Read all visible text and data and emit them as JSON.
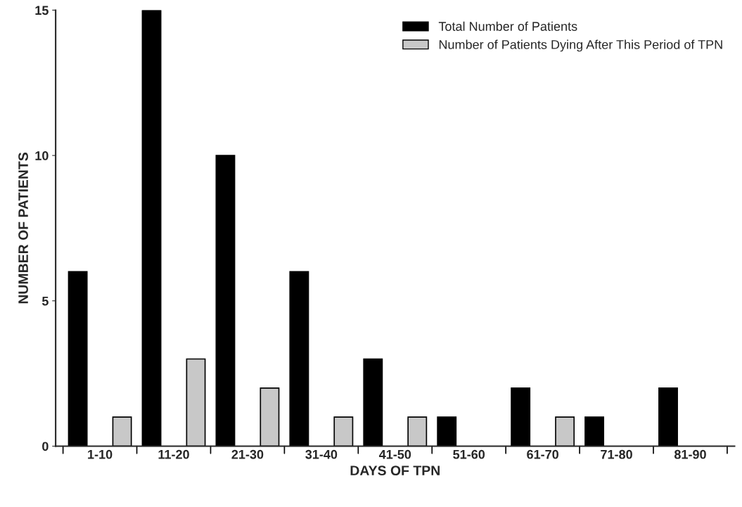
{
  "chart_data": {
    "type": "bar",
    "xlabel": "DAYS OF TPN",
    "ylabel": "NUMBER OF PATIENTS",
    "categories": [
      "1-10",
      "11-20",
      "21-30",
      "31-40",
      "41-50",
      "51-60",
      "61-70",
      "71-80",
      "81-90"
    ],
    "series": [
      {
        "name": "Total Number of Patients",
        "color": "#000000",
        "values": [
          6,
          15,
          10,
          6,
          3,
          1,
          2,
          1,
          2
        ]
      },
      {
        "name": "Number of Patients Dying After This Period of TPN",
        "color": "#c8c8c8",
        "values": [
          1,
          3,
          2,
          1,
          1,
          0,
          1,
          0,
          0
        ]
      }
    ],
    "ylim": [
      0,
      15
    ],
    "yticks": [
      0,
      5,
      10,
      15
    ],
    "grid": false,
    "legend": "top right"
  }
}
